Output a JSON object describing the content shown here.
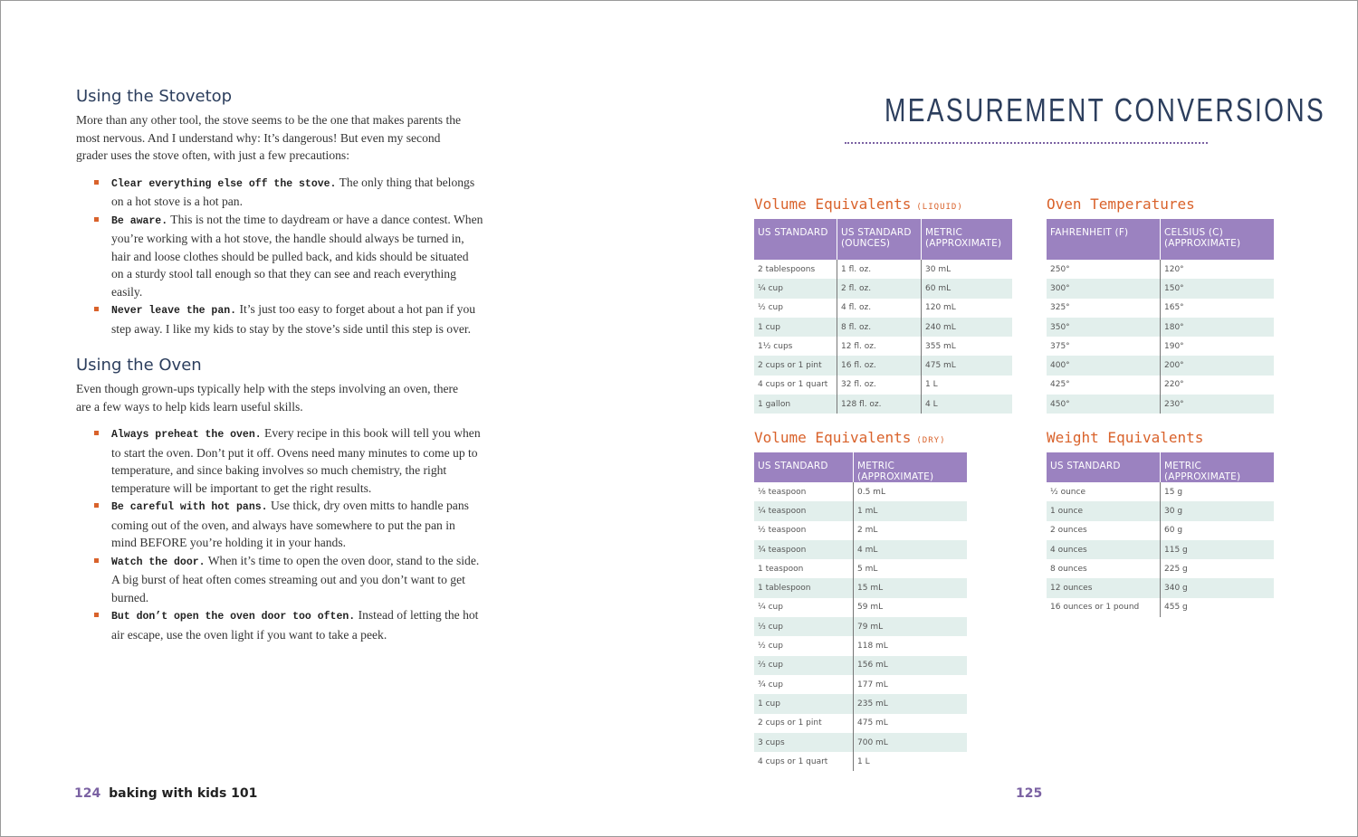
{
  "left_page": {
    "sections": [
      {
        "heading": "Using the Stovetop",
        "intro": "More than any other tool, the stove seems to be the one that makes parents the most nervous. And I understand why: It’s dangerous! But even my second grader uses the stove often, with just a few precautions:",
        "bullets": [
          {
            "lead": "Clear everything else off the stove.",
            "text": "The only thing that belongs on a hot stove is a hot pan."
          },
          {
            "lead": "Be aware.",
            "text": "This is not the time to daydream or have a dance contest. When you’re working with a hot stove, the handle should always be turned in, hair and loose clothes should be pulled back, and kids should be situated on a sturdy stool tall enough so that they can see and reach everything easily."
          },
          {
            "lead": "Never leave the pan.",
            "text": "It’s just too easy to forget about a hot pan if you step away. I like my kids to stay by the stove’s side until this step is over."
          }
        ]
      },
      {
        "heading": "Using the Oven",
        "intro": "Even though grown-ups typically help with the steps involving an oven, there are a few ways to help kids learn useful skills.",
        "bullets": [
          {
            "lead": "Always preheat the oven.",
            "text": "Every recipe in this book will tell you when to start the oven. Don’t put it off. Ovens need many minutes to come up to temperature, and since baking involves so much chemistry, the right temperature will be important to get the right results."
          },
          {
            "lead": "Be careful with hot pans.",
            "text": "Use thick, dry oven mitts to handle pans coming out of the oven, and always have somewhere to put the pan in mind BEFORE you’re holding it in your hands."
          },
          {
            "lead": "Watch the door.",
            "text": "When it’s time to open the oven door, stand to the side. A big burst of heat often comes streaming out and you don’t want to get burned."
          },
          {
            "lead": "But don’t open the oven door too often.",
            "text": "Instead of letting the hot air escape, use the oven light if you want to take a peek."
          }
        ]
      }
    ],
    "footer": {
      "page_number": "124",
      "book_title": "baking with kids 101"
    }
  },
  "right_page": {
    "title": "MEASUREMENT CONVERSIONS",
    "tables": [
      {
        "title": "Volume Equivalents",
        "note": "(LIQUID)",
        "headers": [
          "US STANDARD",
          "US STANDARD (OUNCES)",
          "METRIC (APPROXIMATE)"
        ],
        "rows": [
          [
            "2 tablespoons",
            "1 fl. oz.",
            "30 mL"
          ],
          [
            "¼ cup",
            "2 fl. oz.",
            "60 mL"
          ],
          [
            "½ cup",
            "4 fl. oz.",
            "120 mL"
          ],
          [
            "1 cup",
            "8 fl. oz.",
            "240 mL"
          ],
          [
            "1½ cups",
            "12 fl. oz.",
            "355 mL"
          ],
          [
            "2 cups or 1 pint",
            "16 fl. oz.",
            "475 mL"
          ],
          [
            "4 cups or 1 quart",
            "32 fl. oz.",
            "1 L"
          ],
          [
            "1 gallon",
            "128 fl. oz.",
            "4 L"
          ]
        ]
      },
      {
        "title": "Oven Temperatures",
        "headers": [
          "FAHRENHEIT (F)",
          "CELSIUS (C) (APPROXIMATE)"
        ],
        "rows": [
          [
            "250°",
            "120°"
          ],
          [
            "300°",
            "150°"
          ],
          [
            "325°",
            "165°"
          ],
          [
            "350°",
            "180°"
          ],
          [
            "375°",
            "190°"
          ],
          [
            "400°",
            "200°"
          ],
          [
            "425°",
            "220°"
          ],
          [
            "450°",
            "230°"
          ]
        ]
      },
      {
        "title": "Volume Equivalents",
        "note": "(DRY)",
        "headers": [
          "US STANDARD",
          "METRIC (APPROXIMATE)"
        ],
        "rows": [
          [
            "⅛ teaspoon",
            "0.5 mL"
          ],
          [
            "¼ teaspoon",
            "1 mL"
          ],
          [
            "½ teaspoon",
            "2 mL"
          ],
          [
            "¾ teaspoon",
            "4 mL"
          ],
          [
            "1 teaspoon",
            "5 mL"
          ],
          [
            "1 tablespoon",
            "15 mL"
          ],
          [
            "¼ cup",
            "59 mL"
          ],
          [
            "⅓ cup",
            "79 mL"
          ],
          [
            "½ cup",
            "118 mL"
          ],
          [
            "⅔ cup",
            "156 mL"
          ],
          [
            "¾ cup",
            "177 mL"
          ],
          [
            "1 cup",
            "235 mL"
          ],
          [
            "2 cups or 1 pint",
            "475 mL"
          ],
          [
            "3 cups",
            "700 mL"
          ],
          [
            "4 cups or 1 quart",
            "1 L"
          ]
        ]
      },
      {
        "title": "Weight Equivalents",
        "headers": [
          "US STANDARD",
          "METRIC (APPROXIMATE)"
        ],
        "rows": [
          [
            "½ ounce",
            "15 g"
          ],
          [
            "1 ounce",
            "30 g"
          ],
          [
            "2 ounces",
            "60 g"
          ],
          [
            "4 ounces",
            "115 g"
          ],
          [
            "8 ounces",
            "225 g"
          ],
          [
            "12 ounces",
            "340 g"
          ],
          [
            "16 ounces or 1 pound",
            "455 g"
          ]
        ]
      }
    ],
    "footer": {
      "page_number": "125"
    }
  }
}
